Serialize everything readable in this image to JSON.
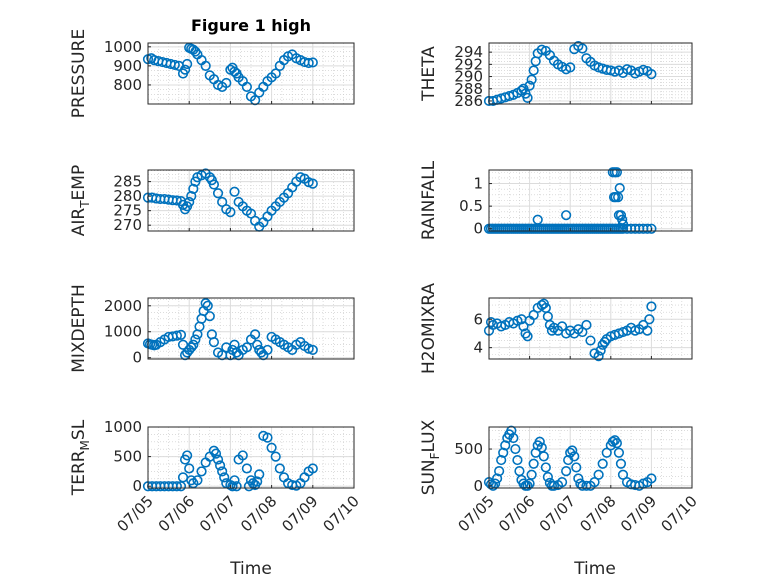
{
  "figure": {
    "title": "Figure 1 high",
    "xlabel": "Time",
    "time_ticks": [
      "07/05",
      "07/06",
      "07/07",
      "07/08",
      "07/09",
      "07/10"
    ],
    "series_color": "#0072BD",
    "grid": "on",
    "minor_grid": "on",
    "marker": "circle"
  },
  "chart_data": [
    {
      "type": "scatter",
      "ylabel": "PRESSURE",
      "ylim": [
        700,
        1020
      ],
      "yticks": [
        800,
        900,
        1000
      ],
      "x": [
        0.0,
        0.08,
        0.15,
        0.25,
        0.35,
        0.45,
        0.55,
        0.65,
        0.75,
        0.85,
        0.9,
        0.95,
        1.0,
        1.05,
        1.1,
        1.15,
        1.2,
        1.3,
        1.4,
        1.5,
        1.6,
        1.7,
        1.8,
        1.9,
        2.0,
        2.05,
        2.1,
        2.15,
        2.2,
        2.3,
        2.4,
        2.5,
        2.6,
        2.7,
        2.8,
        2.9,
        3.0,
        3.1,
        3.2,
        3.3,
        3.4,
        3.5,
        3.6,
        3.7,
        3.8,
        3.9,
        4.0
      ],
      "y": [
        935,
        940,
        930,
        925,
        920,
        915,
        910,
        905,
        900,
        860,
        880,
        910,
        995,
        990,
        985,
        975,
        960,
        930,
        900,
        850,
        830,
        800,
        790,
        810,
        880,
        890,
        870,
        860,
        840,
        820,
        790,
        740,
        720,
        760,
        790,
        820,
        840,
        860,
        900,
        930,
        950,
        960,
        940,
        930,
        920,
        915,
        918
      ]
    },
    {
      "type": "scatter",
      "ylabel": "THETA",
      "ylim": [
        285.5,
        295.5
      ],
      "yticks": [
        286,
        288,
        290,
        292,
        294
      ],
      "x": [
        0.0,
        0.1,
        0.2,
        0.3,
        0.4,
        0.5,
        0.6,
        0.7,
        0.8,
        0.85,
        0.9,
        0.95,
        1.0,
        1.05,
        1.1,
        1.15,
        1.2,
        1.3,
        1.4,
        1.5,
        1.6,
        1.7,
        1.8,
        1.9,
        2.0,
        2.1,
        2.2,
        2.3,
        2.4,
        2.5,
        2.6,
        2.7,
        2.8,
        2.9,
        3.0,
        3.1,
        3.2,
        3.3,
        3.4,
        3.5,
        3.6,
        3.7,
        3.8,
        3.9,
        4.0
      ],
      "y": [
        286.0,
        286.0,
        286.2,
        286.4,
        286.6,
        286.8,
        287.0,
        287.3,
        287.7,
        288.0,
        287.2,
        286.5,
        288.5,
        289.5,
        291.0,
        292.5,
        293.8,
        294.4,
        294.2,
        293.5,
        292.6,
        292.0,
        291.6,
        291.2,
        291.5,
        294.5,
        295.0,
        294.6,
        293.0,
        292.4,
        291.8,
        291.5,
        291.3,
        291.1,
        291.0,
        290.8,
        291.0,
        290.6,
        291.2,
        291.0,
        290.5,
        290.8,
        291.1,
        290.9,
        290.4
      ]
    },
    {
      "type": "scatter",
      "ylabel": "AIR_TEMP",
      "ylim": [
        268,
        289
      ],
      "yticks": [
        270,
        275,
        280,
        285
      ],
      "x": [
        0.0,
        0.1,
        0.2,
        0.3,
        0.4,
        0.5,
        0.6,
        0.7,
        0.8,
        0.85,
        0.9,
        0.95,
        1.0,
        1.05,
        1.1,
        1.15,
        1.2,
        1.3,
        1.4,
        1.5,
        1.55,
        1.6,
        1.7,
        1.8,
        1.9,
        2.0,
        2.1,
        2.2,
        2.3,
        2.4,
        2.5,
        2.6,
        2.7,
        2.8,
        2.9,
        3.0,
        3.1,
        3.2,
        3.3,
        3.4,
        3.5,
        3.6,
        3.7,
        3.8,
        3.9,
        4.0
      ],
      "y": [
        279.5,
        279.5,
        279.2,
        279.0,
        279.0,
        278.8,
        278.6,
        278.5,
        278.3,
        277.0,
        275.5,
        276.5,
        278.0,
        280.0,
        282.5,
        285.0,
        286.5,
        287.2,
        287.8,
        286.5,
        285.5,
        284.0,
        281.0,
        278.0,
        275.5,
        274.5,
        281.5,
        278.0,
        276.5,
        275.0,
        274.0,
        271.5,
        269.5,
        271.0,
        273.0,
        275.0,
        276.5,
        278.0,
        279.5,
        281.0,
        283.0,
        285.0,
        286.5,
        286.0,
        284.8,
        284.3
      ]
    },
    {
      "type": "scatter",
      "ylabel": "RAINFALL",
      "ylim": [
        -0.05,
        1.3
      ],
      "yticks": [
        0,
        0.5,
        1
      ],
      "x": [
        0.0,
        0.05,
        0.1,
        0.15,
        0.2,
        0.25,
        0.3,
        0.35,
        0.4,
        0.45,
        0.5,
        0.55,
        0.6,
        0.65,
        0.7,
        0.75,
        0.8,
        0.85,
        0.9,
        0.95,
        1.0,
        1.05,
        1.1,
        1.15,
        1.2,
        1.25,
        1.3,
        1.35,
        1.4,
        1.45,
        1.5,
        1.55,
        1.6,
        1.65,
        1.7,
        1.75,
        1.8,
        1.85,
        1.9,
        1.95,
        2.0,
        2.05,
        2.1,
        2.15,
        2.2,
        2.25,
        2.3,
        2.35,
        2.4,
        2.45,
        2.5,
        2.55,
        2.6,
        2.65,
        2.7,
        2.75,
        2.8,
        2.85,
        2.9,
        2.95,
        3.0,
        3.05,
        3.1,
        3.15,
        3.2,
        3.25,
        3.3,
        3.4,
        3.5,
        3.6,
        3.7,
        3.8,
        3.9,
        4.0,
        1.2,
        1.9,
        3.1,
        3.05,
        3.15,
        3.12,
        3.08,
        3.18,
        3.22,
        3.2,
        3.25,
        3.28,
        3.3
      ],
      "y": [
        0,
        0,
        0,
        0,
        0,
        0,
        0,
        0,
        0,
        0,
        0,
        0,
        0,
        0,
        0,
        0,
        0,
        0,
        0,
        0,
        0,
        0,
        0,
        0,
        0,
        0,
        0,
        0,
        0,
        0,
        0,
        0,
        0,
        0,
        0,
        0,
        0,
        0,
        0,
        0,
        0,
        0,
        0,
        0,
        0,
        0,
        0,
        0,
        0,
        0,
        0,
        0,
        0,
        0,
        0,
        0,
        0,
        0,
        0,
        0,
        0,
        0,
        0,
        0,
        0,
        0,
        0,
        0,
        0,
        0,
        0,
        0,
        0,
        0,
        0.2,
        0.3,
        1.25,
        1.25,
        1.25,
        0.7,
        0.7,
        0.7,
        0.9,
        0.3,
        0.3,
        0.2,
        0.1
      ]
    },
    {
      "type": "scatter",
      "ylabel": "MIXDEPTH",
      "ylim": [
        -50,
        2300
      ],
      "yticks": [
        0,
        1000,
        2000
      ],
      "x": [
        0.0,
        0.05,
        0.1,
        0.15,
        0.2,
        0.3,
        0.4,
        0.5,
        0.6,
        0.7,
        0.8,
        0.85,
        0.9,
        0.95,
        1.0,
        1.05,
        1.1,
        1.15,
        1.2,
        1.25,
        1.3,
        1.35,
        1.4,
        1.45,
        1.5,
        1.55,
        1.6,
        1.7,
        1.8,
        1.9,
        2.0,
        2.05,
        2.1,
        2.15,
        2.2,
        2.3,
        2.4,
        2.5,
        2.6,
        2.65,
        2.7,
        2.75,
        2.8,
        2.9,
        3.0,
        3.1,
        3.2,
        3.3,
        3.4,
        3.5,
        3.6,
        3.7,
        3.8,
        3.9,
        4.0
      ],
      "y": [
        550,
        520,
        500,
        480,
        500,
        600,
        700,
        800,
        820,
        850,
        880,
        500,
        100,
        200,
        300,
        400,
        500,
        700,
        900,
        1200,
        1500,
        1800,
        2100,
        2000,
        1600,
        900,
        600,
        200,
        100,
        400,
        100,
        300,
        500,
        200,
        100,
        300,
        400,
        700,
        900,
        500,
        300,
        200,
        100,
        300,
        800,
        700,
        600,
        500,
        400,
        300,
        500,
        600,
        450,
        350,
        300
      ]
    },
    {
      "type": "scatter",
      "ylabel": "H2OMIXRA",
      "ylim": [
        3.2,
        7.5
      ],
      "yticks": [
        4,
        6
      ],
      "x": [
        0.0,
        0.05,
        0.1,
        0.2,
        0.3,
        0.4,
        0.5,
        0.6,
        0.7,
        0.8,
        0.85,
        0.9,
        0.95,
        1.0,
        1.1,
        1.2,
        1.3,
        1.35,
        1.4,
        1.45,
        1.5,
        1.55,
        1.6,
        1.7,
        1.8,
        1.9,
        2.0,
        2.1,
        2.2,
        2.3,
        2.4,
        2.5,
        2.6,
        2.7,
        2.75,
        2.8,
        2.85,
        2.9,
        3.0,
        3.1,
        3.2,
        3.3,
        3.4,
        3.5,
        3.6,
        3.7,
        3.8,
        3.9,
        3.95,
        4.0
      ],
      "y": [
        5.2,
        5.8,
        5.6,
        5.7,
        5.5,
        5.6,
        5.8,
        5.7,
        5.9,
        6.0,
        5.5,
        5.0,
        4.8,
        5.9,
        6.3,
        6.8,
        7.0,
        7.1,
        6.8,
        6.2,
        5.6,
        5.2,
        5.4,
        5.2,
        5.5,
        5.0,
        5.2,
        5.0,
        5.3,
        5.1,
        5.6,
        4.5,
        3.6,
        3.4,
        3.8,
        4.2,
        4.4,
        4.6,
        4.8,
        4.9,
        5.0,
        5.1,
        5.2,
        5.4,
        5.2,
        5.3,
        5.6,
        5.2,
        6.0,
        6.9
      ]
    },
    {
      "type": "scatter",
      "ylabel": "TERR_MSL",
      "ylim": [
        -30,
        1000
      ],
      "yticks": [
        0,
        500,
        1000
      ],
      "x": [
        0.0,
        0.1,
        0.2,
        0.3,
        0.4,
        0.5,
        0.6,
        0.7,
        0.8,
        0.85,
        0.9,
        0.95,
        1.0,
        1.05,
        1.1,
        1.2,
        1.3,
        1.4,
        1.5,
        1.6,
        1.65,
        1.7,
        1.75,
        1.8,
        1.85,
        1.9,
        2.0,
        2.1,
        2.2,
        2.3,
        2.4,
        2.5,
        2.55,
        2.6,
        2.65,
        2.7,
        2.8,
        2.9,
        3.0,
        3.1,
        3.2,
        3.3,
        3.4,
        3.5,
        3.6,
        3.7,
        3.8,
        3.9,
        4.0,
        2.05,
        2.15,
        2.45
      ],
      "y": [
        0,
        0,
        0,
        0,
        0,
        0,
        0,
        0,
        0,
        150,
        450,
        520,
        300,
        100,
        50,
        100,
        250,
        400,
        500,
        600,
        550,
        450,
        350,
        250,
        150,
        50,
        20,
        100,
        450,
        520,
        300,
        100,
        50,
        20,
        80,
        200,
        850,
        820,
        650,
        500,
        300,
        150,
        50,
        20,
        10,
        50,
        150,
        250,
        300,
        0,
        0,
        0
      ]
    },
    {
      "type": "scatter",
      "ylabel": "SUN_FLUX",
      "ylim": [
        -30,
        800
      ],
      "yticks": [
        0,
        500
      ],
      "x": [
        0.0,
        0.05,
        0.1,
        0.15,
        0.2,
        0.25,
        0.3,
        0.35,
        0.4,
        0.45,
        0.5,
        0.55,
        0.6,
        0.65,
        0.7,
        0.75,
        0.8,
        0.85,
        0.9,
        0.95,
        1.0,
        1.05,
        1.1,
        1.15,
        1.2,
        1.25,
        1.3,
        1.35,
        1.4,
        1.45,
        1.5,
        1.55,
        1.6,
        1.7,
        1.8,
        1.9,
        1.95,
        2.0,
        2.05,
        2.1,
        2.15,
        2.2,
        2.25,
        2.3,
        2.4,
        2.5,
        2.6,
        2.7,
        2.8,
        2.9,
        3.0,
        3.05,
        3.1,
        3.15,
        3.2,
        3.25,
        3.3,
        3.4,
        3.5,
        3.6,
        3.7,
        3.8,
        3.9,
        4.0
      ],
      "y": [
        50,
        20,
        0,
        30,
        100,
        200,
        350,
        450,
        550,
        650,
        700,
        750,
        650,
        500,
        350,
        200,
        80,
        30,
        0,
        0,
        30,
        150,
        300,
        450,
        550,
        600,
        520,
        400,
        250,
        120,
        40,
        0,
        0,
        10,
        50,
        200,
        350,
        450,
        480,
        400,
        250,
        100,
        30,
        0,
        0,
        0,
        50,
        150,
        300,
        450,
        550,
        600,
        620,
        580,
        450,
        300,
        150,
        50,
        20,
        10,
        0,
        30,
        50,
        100
      ]
    }
  ],
  "labels": {
    "air_temp_main": "AIR",
    "air_temp_sub": "T",
    "air_temp_tail": "EMP",
    "terr_main": "TERR",
    "terr_sub": "M",
    "terr_tail": "SL",
    "sun_main": "SUN",
    "sun_sub": "F",
    "sun_tail": "LUX"
  }
}
